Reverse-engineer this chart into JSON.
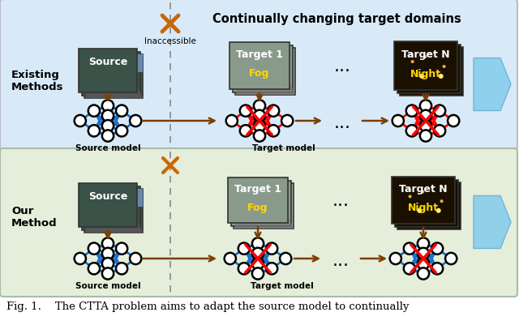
{
  "fig_width": 6.4,
  "fig_height": 4.02,
  "dpi": 100,
  "top_bg_color": "#d8eaf8",
  "bottom_bg_color": "#e4eeda",
  "caption": "Fig. 1.    The CTTA problem aims to adapt the source model to continually",
  "caption_fontsize": 9.5,
  "top_label_existing": "Existing\nMethods",
  "bottom_label_our": "Our\nMethod",
  "title_text": "Continually changing target domains",
  "inaccessible_text": "Inaccessible",
  "source_model_label": "Source model",
  "target_model_label": "Target model",
  "arrow_color": "#7B3F00",
  "big_arrow_color": "#87CEEB",
  "x_mark_color": "#CC6600",
  "blue_line_color": "#1a6fcc",
  "red_line_color": "#FF0000"
}
